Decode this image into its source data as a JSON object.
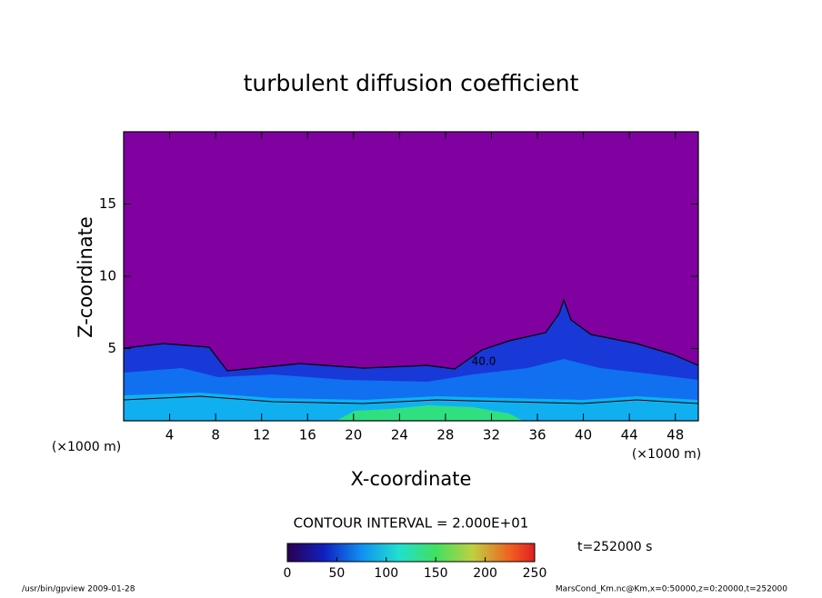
{
  "chart_data": {
    "type": "contour",
    "title": "turbulent diffusion coefficient",
    "xlabel": "X-coordinate",
    "ylabel": "Z-coordinate",
    "x_unit": "(×1000 m)",
    "y_unit": "(×1000 m)",
    "xlim": [
      0,
      50
    ],
    "xticks": [
      4,
      8,
      12,
      16,
      20,
      24,
      28,
      32,
      36,
      40,
      44,
      48
    ],
    "ylim": [
      0,
      20
    ],
    "yticks": [
      5,
      10,
      15
    ],
    "contour_label": "40.0",
    "contour_interval": "CONTOUR INTERVAL = 2.000E+01",
    "time_label": "t=252000 s",
    "colorbar": {
      "lim": [
        0,
        250
      ],
      "ticks": [
        0,
        50,
        100,
        150,
        200,
        250
      ]
    },
    "footer_left": "/usr/bin/gpview  2009-01-28",
    "footer_right": "MarsCond_Km.nc@Km,x=0:50000,z=0:20000,t=252000"
  }
}
